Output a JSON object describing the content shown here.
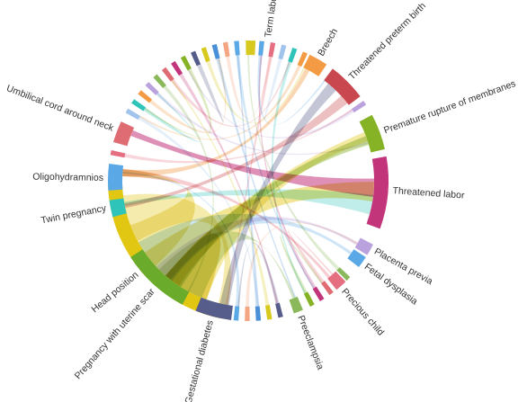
{
  "diagram": {
    "type": "chord",
    "categories": [
      {
        "label": "Head position",
        "color": "#e2c712",
        "start": 190,
        "end": 268,
        "label_at": 230
      },
      {
        "label": "Term labor",
        "color": "#d8c91e",
        "start": 359,
        "end": 363,
        "label_at": 8
      },
      {
        "label": "Breech",
        "color": "#f29b44",
        "start": 26,
        "end": 34,
        "label_at": 30
      },
      {
        "label": "Threatened preterm birth",
        "color": "#c9474e",
        "start": 37,
        "end": 53,
        "label_at": 45
      },
      {
        "label": "Premature rupture of membranes",
        "color": "#86b325",
        "start": 62,
        "end": 77,
        "label_at": 70
      },
      {
        "label": "Threatened labor",
        "color": "#c2357a",
        "start": 80,
        "end": 110,
        "label_at": 94
      },
      {
        "label": "Placenta previa",
        "color": "#b9a2de",
        "start": 117,
        "end": 122,
        "label_at": 119
      },
      {
        "label": "Fetal dysplasia",
        "color": "#5aa9e6",
        "start": 123,
        "end": 128,
        "label_at": 126
      },
      {
        "label": "Precious child",
        "color": "#e56f80",
        "start": 136,
        "end": 141,
        "label_at": 139
      },
      {
        "label": "Preeclampsia",
        "color": "#8bb85a",
        "start": 157,
        "end": 161,
        "label_at": 159
      },
      {
        "label": "Gestational diabetes",
        "color": "#565d8a",
        "start": 187,
        "end": 202,
        "label_at": 195
      },
      {
        "label": "Pregnancy with uterine scar",
        "color": "#6aab2b",
        "start": 208,
        "end": 237,
        "label_at": 221
      },
      {
        "label": "Twin pregnancy",
        "color": "#2ec4b9",
        "start": 255,
        "end": 262,
        "label_at": 259
      },
      {
        "label": "Oligohydramnios",
        "color": "#5aa9e6",
        "start": 266,
        "end": 277,
        "label_at": 271
      },
      {
        "label": "Umbilical cord around neck",
        "color": "#e06c73",
        "start": 286,
        "end": 295,
        "label_at": 291
      }
    ],
    "minor_arc_colors": [
      "#5aa9e6",
      "#e56f80",
      "#a0c4ec",
      "#2ec4b9",
      "#f29b44",
      "#b9a2de",
      "#8bb85a",
      "#e06c73",
      "#c2357a",
      "#86b325",
      "#565d8a",
      "#d8c91e",
      "#4a90d9",
      "#f4a582"
    ]
  }
}
